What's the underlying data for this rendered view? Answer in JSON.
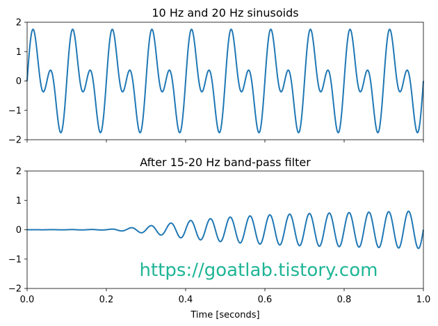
{
  "chart_data": [
    {
      "type": "line",
      "title": "10 Hz and 20 Hz sinusoids",
      "xlabel": "",
      "ylabel": "",
      "xlim": [
        0,
        1
      ],
      "ylim": [
        -2,
        2
      ],
      "yticks": [
        2,
        1,
        0,
        -1,
        -2
      ],
      "ytick_labels": [
        "2",
        "1",
        "0",
        "−1",
        "−2"
      ],
      "xticks": [
        0,
        0.2,
        0.4,
        0.6,
        0.8,
        1.0
      ],
      "xtick_labels_visible": false,
      "grid": false,
      "series": [
        {
          "formula": "sin(2π·10·t) + sin(2π·20·t)",
          "t_range": [
            0,
            1
          ],
          "color": "#1f77b4"
        }
      ]
    },
    {
      "type": "line",
      "title": "After 15-20 Hz band-pass filter",
      "xlabel": "Time [seconds]",
      "ylabel": "",
      "xlim": [
        0,
        1
      ],
      "ylim": [
        -2,
        2
      ],
      "yticks": [
        2,
        1,
        0,
        -1,
        -2
      ],
      "ytick_labels": [
        "2",
        "1",
        "0",
        "−1",
        "−2"
      ],
      "xticks": [
        0,
        0.2,
        0.4,
        0.6,
        0.8,
        1.0
      ],
      "xtick_labels": [
        "0.0",
        "0.2",
        "0.4",
        "0.6",
        "0.8",
        "1.0"
      ],
      "grid": false,
      "series": [
        {
          "description": "20 Hz sinusoid with growing envelope",
          "frequency_hz": 20,
          "envelope": {
            "t": [
              0,
              0.2,
              0.25,
              0.3,
              0.35,
              0.4,
              0.45,
              0.5,
              0.6,
              0.7,
              0.8,
              0.9,
              1.0
            ],
            "a": [
              0,
              0.01,
              0.05,
              0.12,
              0.2,
              0.3,
              0.36,
              0.42,
              0.5,
              0.55,
              0.58,
              0.61,
              0.64
            ]
          },
          "color": "#1f77b4"
        }
      ]
    }
  ],
  "watermark": "https://goatlab.tistory.com"
}
